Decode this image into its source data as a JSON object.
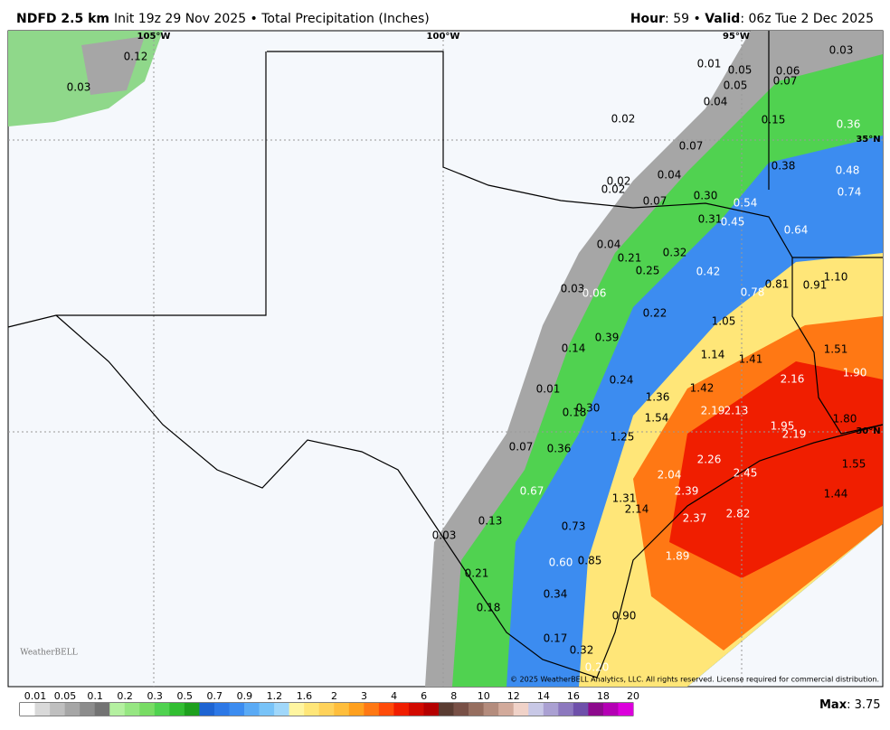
{
  "header": {
    "model": "NDFD 2.5 km",
    "info": "Init 19z 29 Nov 2025 • Total Precipitation (Inches)",
    "hour_key": "Hour",
    "hour_value": ": 59 • ",
    "valid_key": "Valid",
    "valid_value": ": 06z Tue 2 Dec 2025"
  },
  "map": {
    "longitudes": [
      "105°W",
      "100°W",
      "95°W"
    ],
    "latitudes": [
      "35°N",
      "30°N"
    ],
    "labels": [
      "0.12",
      "0.03",
      "0.01",
      "0.05",
      "0.06",
      "0.07",
      "0.03",
      "0.05",
      "0.04",
      "0.15",
      "0.36",
      "0.02",
      "0.07",
      "0.38",
      "0.48",
      "0.04",
      "0.74",
      "0.02",
      "0.02",
      "0.07",
      "0.30",
      "0.54",
      "0.31",
      "0.45",
      "0.64",
      "0.04",
      "0.21",
      "0.32",
      "0.25",
      "0.42",
      "1.10",
      "0.03",
      "0.06",
      "0.78",
      "0.81",
      "0.91",
      "0.22",
      "1.05",
      "0.14",
      "0.39",
      "1.51",
      "1.14",
      "1.41",
      "2.16",
      "1.90",
      "0.24",
      "1.42",
      "0.01",
      "1.36",
      "0.18",
      "0.30",
      "2.19",
      "2.13",
      "1.54",
      "1.95",
      "1.80",
      "2.19",
      "1.25",
      "0.07",
      "0.36",
      "2.26",
      "2.45",
      "1.55",
      "2.04",
      "0.67",
      "2.39",
      "1.31",
      "1.44",
      "2.14",
      "2.37",
      "2.82",
      "0.13",
      "0.73",
      "0.03",
      "1.89",
      "0.60",
      "0.85",
      "0.21",
      "0.34",
      "0.18",
      "0.90",
      "0.17",
      "0.32",
      "0.20"
    ],
    "copyright": "© 2025 WeatherBELL Analytics, LLC. All rights reserved. License required for commercial distribution.",
    "logo": "WeatherBELL"
  },
  "colorbar": {
    "labels": [
      "0.01",
      "0.05",
      "0.1",
      "0.2",
      "0.3",
      "0.5",
      "0.7",
      "0.9",
      "1.2",
      "1.6",
      "2",
      "3",
      "4",
      "6",
      "8",
      "10",
      "12",
      "14",
      "16",
      "18",
      "20"
    ],
    "colors": [
      "#ffffff",
      "#d9d9d9",
      "#bfbfbf",
      "#a6a6a6",
      "#8c8c8c",
      "#737373",
      "#b4f0a0",
      "#96e682",
      "#78dc64",
      "#50d250",
      "#32be32",
      "#1ea01e",
      "#1e64d2",
      "#2d78e6",
      "#3c8cf0",
      "#5aaaf5",
      "#78c3f8",
      "#a0d7fa",
      "#fff5a0",
      "#ffe678",
      "#ffd25a",
      "#ffbe3c",
      "#ffa01e",
      "#ff7814",
      "#ff4b0a",
      "#f01e00",
      "#d20a00",
      "#b40000",
      "#5a3c32",
      "#785046",
      "#966e5f",
      "#b48c7d",
      "#d2aa9b",
      "#f0d2c8",
      "#c8c8e6",
      "#aaa0d2",
      "#8c78be",
      "#6e50aa",
      "#8c0a8c",
      "#b400b4",
      "#dc00dc"
    ]
  },
  "footer": {
    "max_key": "Max",
    "max_value": ": 3.75"
  }
}
